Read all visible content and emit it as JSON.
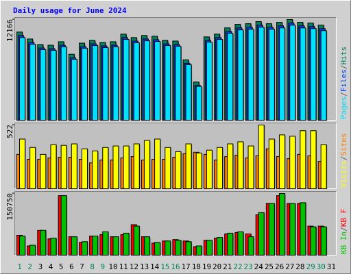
{
  "separator": "/",
  "chart_data": [
    {
      "type": "bar",
      "title": "Daily usage for June 2024",
      "ylim": [
        0,
        12166
      ],
      "yticks": [
        12166
      ],
      "series": [
        {
          "name": "Hits",
          "color": "#00805c",
          "values": [
            10665,
            9831,
            9165,
            9082,
            9499,
            7999,
            9333,
            9666,
            9416,
            9499,
            10416,
            9999,
            10249,
            10166,
            9666,
            9583,
            7333,
            4666,
            10083,
            10416,
            11166,
            11583,
            11666,
            11916,
            11666,
            11833,
            12166,
            11833,
            11749,
            11499,
            null
          ]
        },
        {
          "name": "Files",
          "color": "#0040ff",
          "values": [
            10245,
            9411,
            8745,
            8662,
            9079,
            7579,
            8913,
            9246,
            8996,
            9079,
            9996,
            9579,
            9829,
            9746,
            9246,
            9163,
            6913,
            4246,
            9663,
            9996,
            10746,
            11163,
            11246,
            11496,
            11246,
            11413,
            11746,
            11413,
            11329,
            11079,
            null
          ]
        },
        {
          "name": "Pages",
          "color": "#00e0ff",
          "values": [
            10000,
            9200,
            8550,
            8470,
            8880,
            7400,
            8720,
            9040,
            8800,
            8880,
            9780,
            9370,
            9610,
            9530,
            9040,
            8960,
            6750,
            4150,
            9450,
            9780,
            10510,
            10920,
            11000,
            11240,
            11000,
            11160,
            11490,
            11160,
            11080,
            10830,
            null
          ]
        }
      ]
    },
    {
      "type": "bar",
      "ylim": [
        0,
        522
      ],
      "yticks": [
        522
      ],
      "series": [
        {
          "name": "Sites",
          "color": "#ff8000",
          "values": [
            284,
            244,
            244,
            255,
            261,
            261,
            244,
            215,
            238,
            238,
            255,
            266,
            238,
            244,
            244,
            261,
            289,
            301,
            284,
            238,
            266,
            278,
            255,
            272,
            329,
            266,
            249,
            284,
            272,
            227,
            null
          ]
        },
        {
          "name": "Visits",
          "color": "#ffff00",
          "values": [
            408,
            340,
            284,
            363,
            357,
            369,
            329,
            312,
            340,
            352,
            352,
            369,
            397,
            408,
            340,
            306,
            369,
            295,
            318,
            340,
            369,
            386,
            352,
            522,
            408,
            442,
            431,
            476,
            476,
            363,
            null
          ]
        }
      ]
    },
    {
      "type": "bar",
      "ylim": [
        0,
        150750
      ],
      "yticks": [
        150750
      ],
      "categories": [
        "1",
        "2",
        "3",
        "4",
        "5",
        "6",
        "7",
        "8",
        "9",
        "10",
        "11",
        "12",
        "13",
        "14",
        "15",
        "16",
        "17",
        "18",
        "19",
        "20",
        "21",
        "22",
        "23",
        "24",
        "25",
        "26",
        "27",
        "28",
        "29",
        "30",
        "31"
      ],
      "weekend": [
        0,
        1,
        7,
        8,
        14,
        15,
        21,
        22,
        28,
        29
      ],
      "weekend_color": "#00805c",
      "series": [
        {
          "name": "KB F",
          "color": "#ff0000",
          "values": [
            49677,
            23982,
            61668,
            41112,
            145605,
            46251,
            32547,
            47964,
            51390,
            46251,
            51390,
            75372,
            46251,
            30834,
            35973,
            39399,
            35973,
            22269,
            37686,
            42825,
            53103,
            56529,
            53103,
            99354,
            126762,
            145605,
            126762,
            126762,
            71946,
            71946,
            null
          ]
        },
        {
          "name": "KB In",
          "color": "#00c000",
          "values": [
            47964,
            25695,
            61668,
            42825,
            145605,
            46251,
            34260,
            47964,
            58242,
            46251,
            54816,
            71946,
            46251,
            32547,
            35973,
            37686,
            34260,
            23982,
            37686,
            44538,
            54816,
            58242,
            46251,
            104493,
            126762,
            150750,
            126762,
            128475,
            70233,
            70233,
            null
          ]
        }
      ]
    }
  ]
}
